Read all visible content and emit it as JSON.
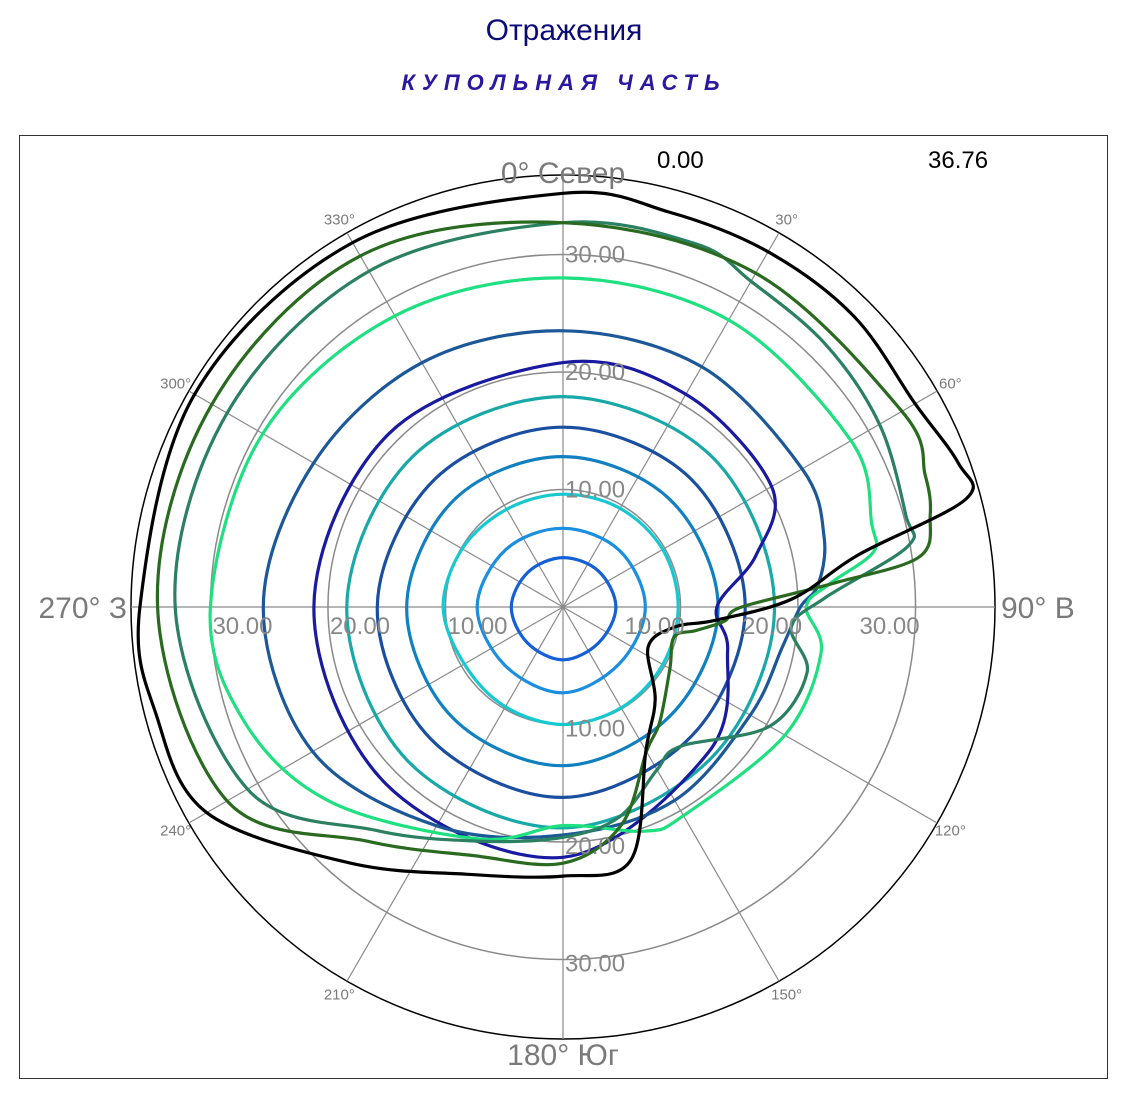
{
  "title": "Отражения",
  "subtitle": "КУПОЛЬНАЯ ЧАСТЬ",
  "chart_data": {
    "type": "polar-contour",
    "range_min": "0.00",
    "range_max": "36.76",
    "r_max": 36.76,
    "directions": [
      {
        "angle": 0,
        "label": "0° Север"
      },
      {
        "angle": 90,
        "label": "90° В"
      },
      {
        "angle": 180,
        "label": "180° Юг"
      },
      {
        "angle": 270,
        "label": "270° З"
      }
    ],
    "spokes": [
      {
        "angle": 30,
        "label": "30°"
      },
      {
        "angle": 60,
        "label": "60°"
      },
      {
        "angle": 120,
        "label": "120°"
      },
      {
        "angle": 150,
        "label": "150°"
      },
      {
        "angle": 210,
        "label": "210°"
      },
      {
        "angle": 240,
        "label": "240°"
      },
      {
        "angle": 300,
        "label": "300°"
      },
      {
        "angle": 330,
        "label": "330°"
      }
    ],
    "rings": [
      10,
      20,
      30
    ],
    "ring_labels": [
      {
        "text": "10.00",
        "angle": 0,
        "r": 10
      },
      {
        "text": "20.00",
        "angle": 0,
        "r": 20
      },
      {
        "text": "30.00",
        "angle": 0,
        "r": 30
      },
      {
        "text": "10.00",
        "angle": 90,
        "r": 10
      },
      {
        "text": "20.00",
        "angle": 90,
        "r": 20
      },
      {
        "text": "30.00",
        "angle": 90,
        "r": 30
      },
      {
        "text": "10.00",
        "angle": 180,
        "r": 10
      },
      {
        "text": "20.00",
        "angle": 180,
        "r": 20
      },
      {
        "text": "30.00",
        "angle": 180,
        "r": 30
      },
      {
        "text": "10.00",
        "angle": 270,
        "r": 10
      },
      {
        "text": "20.00",
        "angle": 270,
        "r": 20
      },
      {
        "text": "30.00",
        "angle": 270,
        "r": 30
      }
    ],
    "series": [
      {
        "color": "#1560d6",
        "points": [
          [
            0,
            4.2
          ],
          [
            45,
            4.3
          ],
          [
            90,
            4.5
          ],
          [
            135,
            4.3
          ],
          [
            180,
            4.5
          ],
          [
            225,
            4.3
          ],
          [
            270,
            4.4
          ],
          [
            315,
            4.2
          ]
        ]
      },
      {
        "color": "#1a8ee0",
        "points": [
          [
            0,
            6.7
          ],
          [
            45,
            6.8
          ],
          [
            90,
            7.0
          ],
          [
            135,
            6.8
          ],
          [
            180,
            7.3
          ],
          [
            225,
            7.0
          ],
          [
            270,
            7.3
          ],
          [
            315,
            6.9
          ]
        ]
      },
      {
        "color": "#18c8d0",
        "points": [
          [
            0,
            9.6
          ],
          [
            30,
            9.7
          ],
          [
            60,
            9.8
          ],
          [
            90,
            9.8
          ],
          [
            120,
            9.8
          ],
          [
            150,
            9.9
          ],
          [
            180,
            10.0
          ],
          [
            210,
            9.8
          ],
          [
            240,
            9.7
          ],
          [
            270,
            10.2
          ],
          [
            300,
            9.9
          ],
          [
            330,
            9.6
          ]
        ]
      },
      {
        "color": "#1080c0",
        "points": [
          [
            0,
            12.8
          ],
          [
            45,
            12.9
          ],
          [
            90,
            13.2
          ],
          [
            135,
            13.0
          ],
          [
            180,
            13.5
          ],
          [
            225,
            13.3
          ],
          [
            270,
            13.3
          ],
          [
            315,
            13.0
          ]
        ]
      },
      {
        "color": "#1a4fa0",
        "points": [
          [
            0,
            15.3
          ],
          [
            45,
            15.4
          ],
          [
            90,
            15.5
          ],
          [
            135,
            15.5
          ],
          [
            180,
            16.2
          ],
          [
            225,
            15.9
          ],
          [
            270,
            15.8
          ],
          [
            315,
            15.4
          ]
        ]
      },
      {
        "color": "#18a8a8",
        "points": [
          [
            0,
            17.9
          ],
          [
            45,
            18.0
          ],
          [
            90,
            18.0
          ],
          [
            135,
            18.0
          ],
          [
            180,
            18.8
          ],
          [
            225,
            18.6
          ],
          [
            270,
            18.4
          ],
          [
            315,
            18.1
          ]
        ]
      },
      {
        "color": "#1a1aa0",
        "points": [
          [
            0,
            20.8
          ],
          [
            30,
            20.9
          ],
          [
            60,
            20.5
          ],
          [
            75,
            17.0
          ],
          [
            90,
            13.1
          ],
          [
            105,
            14.5
          ],
          [
            135,
            17.5
          ],
          [
            180,
            21.3
          ],
          [
            225,
            21.3
          ],
          [
            270,
            21.2
          ],
          [
            315,
            20.9
          ]
        ]
      },
      {
        "color": "#1c5898",
        "points": [
          [
            0,
            23.5
          ],
          [
            30,
            23.6
          ],
          [
            60,
            23.5
          ],
          [
            75,
            23.0
          ],
          [
            85,
            21.8
          ],
          [
            90,
            20.2
          ],
          [
            100,
            19.0
          ],
          [
            120,
            18.4
          ],
          [
            150,
            19.0
          ],
          [
            180,
            19.4
          ],
          [
            210,
            21.5
          ],
          [
            240,
            24.6
          ],
          [
            270,
            25.5
          ],
          [
            300,
            24.5
          ],
          [
            330,
            24.0
          ]
        ]
      },
      {
        "color": "#1fe080",
        "points": [
          [
            0,
            28.0
          ],
          [
            30,
            28.2
          ],
          [
            60,
            28.3
          ],
          [
            75,
            27.2
          ],
          [
            80,
            26.8
          ],
          [
            85,
            22.8
          ],
          [
            90,
            20.7
          ],
          [
            100,
            22.3
          ],
          [
            120,
            21.8
          ],
          [
            150,
            20.5
          ],
          [
            160,
            20.3
          ],
          [
            180,
            18.6
          ],
          [
            200,
            21.0
          ],
          [
            230,
            25.8
          ],
          [
            250,
            28.8
          ],
          [
            270,
            30.0
          ],
          [
            300,
            29.5
          ],
          [
            330,
            28.6
          ]
        ]
      },
      {
        "color": "#2a8060",
        "points": [
          [
            0,
            32.7
          ],
          [
            20,
            32.9
          ],
          [
            30,
            32.0
          ],
          [
            45,
            31.6
          ],
          [
            60,
            31.1
          ],
          [
            75,
            30.2
          ],
          [
            80,
            29.8
          ],
          [
            88,
            22.3
          ],
          [
            95,
            19.5
          ],
          [
            105,
            21.5
          ],
          [
            120,
            20.3
          ],
          [
            140,
            15.5
          ],
          [
            150,
            16.0
          ],
          [
            165,
            18.5
          ],
          [
            180,
            19.6
          ],
          [
            200,
            21.2
          ],
          [
            220,
            24.8
          ],
          [
            240,
            31.0
          ],
          [
            270,
            33.0
          ],
          [
            300,
            33.0
          ],
          [
            330,
            33.0
          ]
        ]
      },
      {
        "color": "#2a6a20",
        "points": [
          [
            0,
            32.7
          ],
          [
            30,
            32.8
          ],
          [
            60,
            33.3
          ],
          [
            70,
            32.8
          ],
          [
            76,
            32.2
          ],
          [
            82,
            30.6
          ],
          [
            85,
            23.1
          ],
          [
            90,
            15.2
          ],
          [
            95,
            13.8
          ],
          [
            100,
            11.5
          ],
          [
            105,
            9.8
          ],
          [
            120,
            10.5
          ],
          [
            140,
            12.8
          ],
          [
            150,
            14.2
          ],
          [
            165,
            19.2
          ],
          [
            180,
            21.8
          ],
          [
            200,
            22.5
          ],
          [
            220,
            26.0
          ],
          [
            240,
            33.0
          ],
          [
            270,
            34.5
          ],
          [
            300,
            34.5
          ],
          [
            330,
            34.5
          ]
        ]
      },
      {
        "color": "#000000",
        "points": [
          [
            0,
            35.2
          ],
          [
            15,
            34.8
          ],
          [
            30,
            34.9
          ],
          [
            45,
            35.0
          ],
          [
            60,
            34.6
          ],
          [
            70,
            35.8
          ],
          [
            75,
            35.5
          ],
          [
            80,
            25.5
          ],
          [
            88,
            19.5
          ],
          [
            95,
            13.0
          ],
          [
            100,
            9.7
          ],
          [
            115,
            8.0
          ],
          [
            135,
            11.1
          ],
          [
            150,
            14.1
          ],
          [
            165,
            22.3
          ],
          [
            180,
            22.9
          ],
          [
            200,
            24.2
          ],
          [
            220,
            28.4
          ],
          [
            240,
            35.0
          ],
          [
            255,
            35.8
          ],
          [
            270,
            36.0
          ],
          [
            300,
            36.2
          ],
          [
            330,
            35.8
          ]
        ]
      }
    ]
  }
}
